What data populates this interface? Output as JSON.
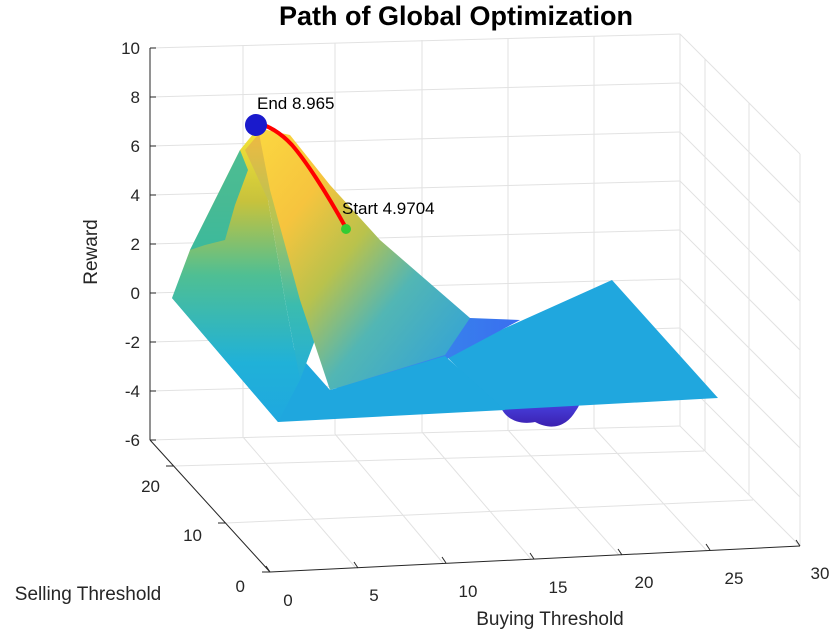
{
  "chart_data": {
    "type": "surface",
    "title": "Path of Global Optimization",
    "xlabel": "Buying Threshold",
    "ylabel": "Selling Threshold",
    "zlabel": "Reward",
    "xlim": [
      0,
      30
    ],
    "ylim": [
      0,
      25
    ],
    "zlim": [
      -6,
      10
    ],
    "x_ticks": [
      "0",
      "5",
      "10",
      "15",
      "20",
      "25",
      "30"
    ],
    "y_ticks": [
      "0",
      "10",
      "20"
    ],
    "z_ticks": [
      "10",
      "8",
      "6",
      "4",
      "2",
      "0",
      "-2",
      "-4",
      "-6"
    ],
    "grid": true,
    "colormap": "parula",
    "surface_peak_reward": 8.965,
    "surface_floor_reward": -0.5,
    "surface_min_reward": -5.5,
    "path": {
      "color": "#ff0000",
      "start": {
        "reward": 4.9704,
        "label": "Start 4.9704",
        "color": "#33cc33"
      },
      "end": {
        "reward": 8.965,
        "label": "End 8.965",
        "color": "#1a1acc"
      }
    }
  }
}
